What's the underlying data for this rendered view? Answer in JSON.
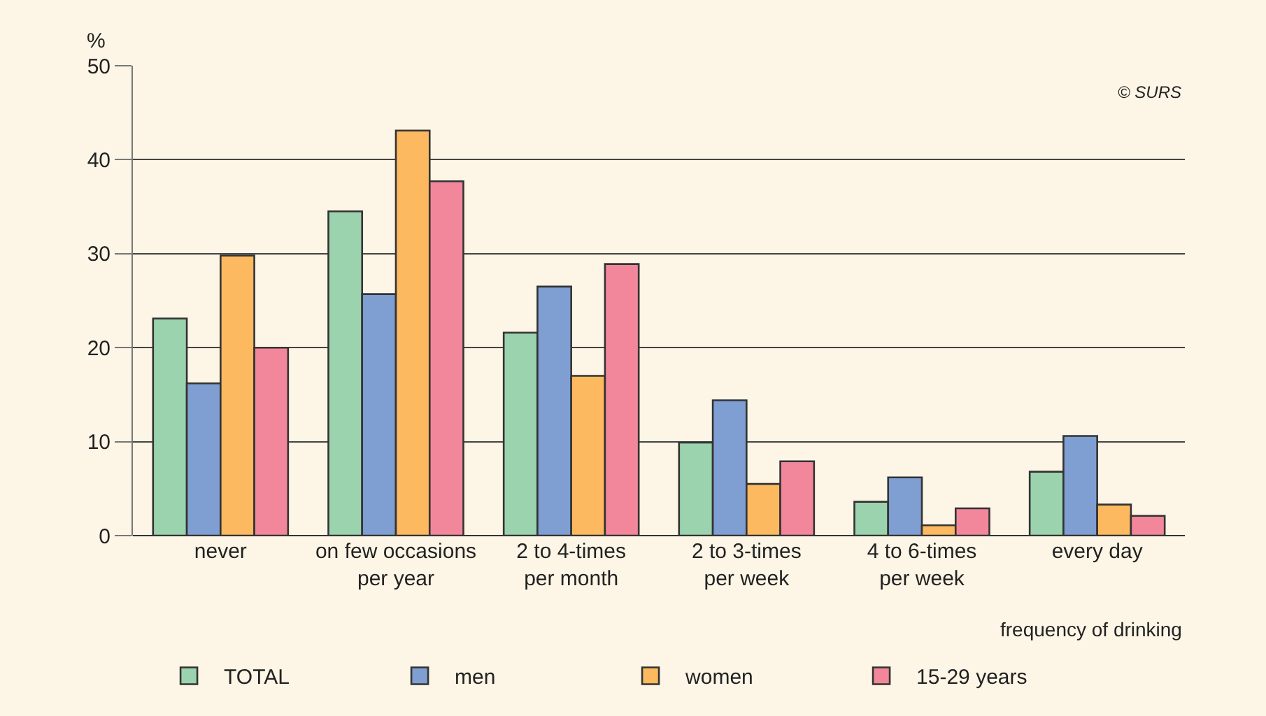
{
  "chart_data": {
    "type": "bar",
    "ylabel": "%",
    "xlabel": "frequency of drinking",
    "categories": [
      "never",
      "on few occasions\nper year",
      "2 to 4-times\nper month",
      "2 to 3-times\nper week",
      "4 to 6-times\nper week",
      "every day"
    ],
    "series": [
      {
        "name": "TOTAL",
        "color": "#9bd3ae",
        "values": [
          23.1,
          34.5,
          21.6,
          9.9,
          3.6,
          6.8
        ]
      },
      {
        "name": "men",
        "color": "#7f9fd3",
        "values": [
          16.2,
          25.7,
          26.5,
          14.4,
          6.2,
          10.6
        ]
      },
      {
        "name": "women",
        "color": "#fdb95f",
        "values": [
          29.8,
          43.1,
          17.0,
          5.5,
          1.1,
          3.3
        ]
      },
      {
        "name": "15-29 years",
        "color": "#f2879b",
        "values": [
          20.0,
          37.7,
          28.9,
          7.9,
          2.9,
          2.1
        ]
      }
    ],
    "ylim": [
      0,
      50
    ],
    "yticks": [
      0,
      10,
      20,
      30,
      40,
      50
    ],
    "grid": "y",
    "legend": "bottom",
    "annotations": [
      "© SURS"
    ]
  }
}
